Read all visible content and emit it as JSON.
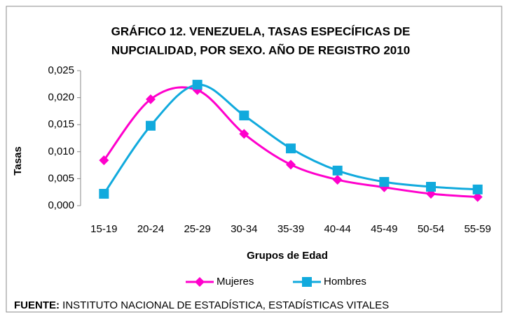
{
  "chart_data": {
    "type": "line",
    "title": [
      "GRÁFICO 12. VENEZUELA, TASAS ESPECÍFICAS DE",
      "NUPCIALIDAD, POR SEXO. AÑO DE REGISTRO 2010"
    ],
    "y_label": "Tasas",
    "x_label": "Grupos de Edad",
    "categories": [
      "15-19",
      "20-24",
      "25-29",
      "30-34",
      "35-39",
      "40-44",
      "45-49",
      "50-54",
      "55-59"
    ],
    "series": [
      {
        "name": "Mujeres",
        "color": "#ff00cc",
        "marker": "diamond",
        "values": [
          0.0084,
          0.0197,
          0.0214,
          0.0133,
          0.0076,
          0.0048,
          0.0034,
          0.0022,
          0.0016
        ]
      },
      {
        "name": "Hombres",
        "color": "#11aadd",
        "marker": "square",
        "values": [
          0.0022,
          0.0148,
          0.0224,
          0.0167,
          0.0106,
          0.0065,
          0.0044,
          0.0035,
          0.003
        ]
      }
    ],
    "ylim": [
      0,
      0.025
    ],
    "yticks": [
      {
        "value": 0,
        "label": "0,000"
      },
      {
        "value": 0.005,
        "label": "0,005"
      },
      {
        "value": 0.01,
        "label": "0,010"
      },
      {
        "value": 0.015,
        "label": "0,015"
      },
      {
        "value": 0.02,
        "label": "0,020"
      },
      {
        "value": 0.025,
        "label": "0,025"
      }
    ],
    "grid": false,
    "legend": "bottom",
    "source": {
      "label": "FUENTE:",
      "text": "INSTITUTO NACIONAL DE ESTADÍSTICA, ESTADÍSTICAS VITALES"
    }
  }
}
